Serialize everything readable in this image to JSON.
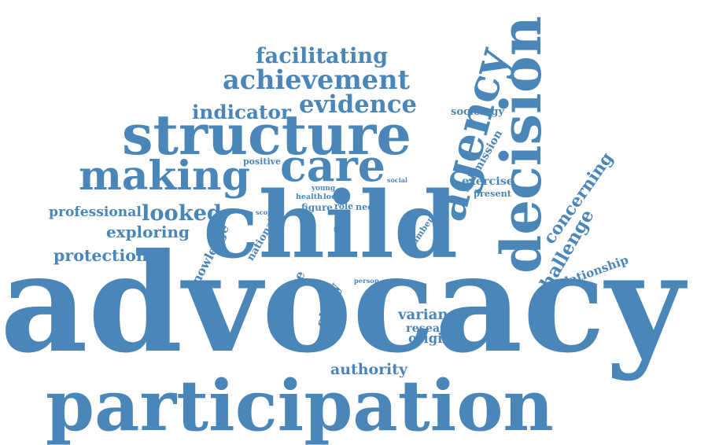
{
  "color": "#4a86b8",
  "words": [
    {
      "id": "advocacy",
      "text": "advocacy"
    },
    {
      "id": "participation",
      "text": "participation"
    },
    {
      "id": "child",
      "text": "child"
    },
    {
      "id": "decision",
      "text": "decision"
    },
    {
      "id": "agency",
      "text": "agency"
    },
    {
      "id": "structure",
      "text": "structure"
    },
    {
      "id": "making",
      "text": "making"
    },
    {
      "id": "care",
      "text": "care"
    },
    {
      "id": "achievement",
      "text": "achievement"
    },
    {
      "id": "facilitating",
      "text": "facilitating"
    },
    {
      "id": "evidence",
      "text": "evidence"
    },
    {
      "id": "indicator",
      "text": "indicator"
    },
    {
      "id": "challenge",
      "text": "challenge"
    },
    {
      "id": "concerning",
      "text": "concerning"
    },
    {
      "id": "relationship",
      "text": "relationship"
    },
    {
      "id": "professional",
      "text": "professional"
    },
    {
      "id": "looked",
      "text": "looked"
    },
    {
      "id": "exploring",
      "text": "exploring"
    },
    {
      "id": "protection",
      "text": "protection"
    },
    {
      "id": "knowledge",
      "text": "knowledge"
    },
    {
      "id": "national",
      "text": "national"
    },
    {
      "id": "service",
      "text": "service"
    },
    {
      "id": "study",
      "text": "study"
    },
    {
      "id": "variance",
      "text": "variance"
    },
    {
      "id": "research",
      "text": "research"
    },
    {
      "id": "original",
      "text": "original"
    },
    {
      "id": "authority",
      "text": "authority"
    },
    {
      "id": "sociology",
      "text": "sociology"
    },
    {
      "id": "submission",
      "text": "submission"
    },
    {
      "id": "exercise",
      "text": "exercise"
    },
    {
      "id": "present",
      "text": "present"
    },
    {
      "id": "positive",
      "text": "positive"
    },
    {
      "id": "young",
      "text": "young"
    },
    {
      "id": "health",
      "text": "health"
    },
    {
      "id": "local",
      "text": "local"
    },
    {
      "id": "social",
      "text": "social"
    },
    {
      "id": "figure",
      "text": "figure"
    },
    {
      "id": "role",
      "text": "role"
    },
    {
      "id": "need",
      "text": "need"
    },
    {
      "id": "scope",
      "text": "scope"
    },
    {
      "id": "fact",
      "text": "fact"
    },
    {
      "id": "gap",
      "text": "gap"
    },
    {
      "id": "number",
      "text": "number"
    },
    {
      "id": "person",
      "text": "person"
    }
  ]
}
